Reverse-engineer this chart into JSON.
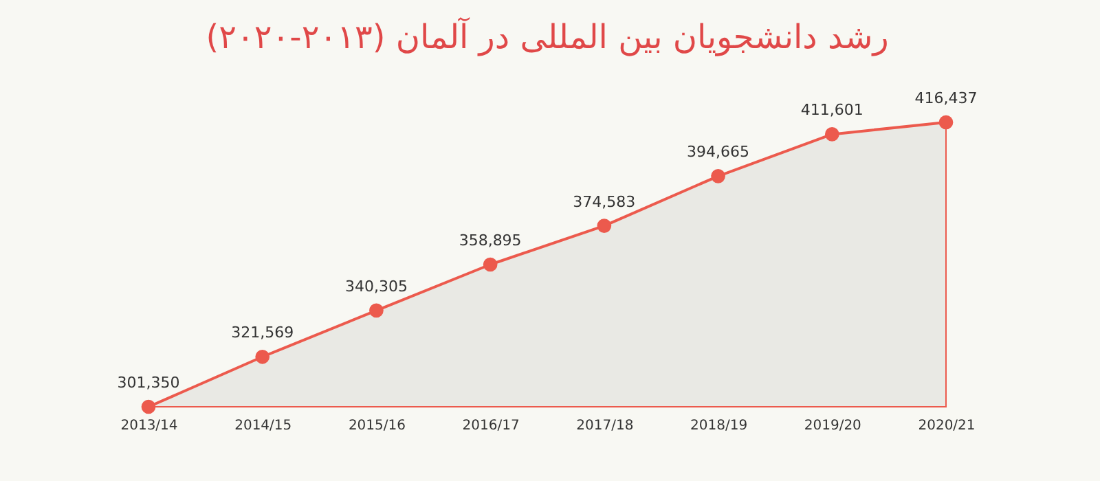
{
  "chart_data": {
    "type": "area",
    "title": "رشد دانشجویان بین المللی در آلمان (۲۰۱۳-۲۰۲۰)",
    "categories": [
      "2013/14",
      "2014/15",
      "2015/16",
      "2016/17",
      "2017/18",
      "2018/19",
      "2019/20",
      "2020/21"
    ],
    "series": [
      {
        "color": "#ec5a4d",
        "values": [
          301350,
          321569,
          340305,
          358895,
          374583,
          394665,
          411601,
          416437
        ],
        "value_labels": [
          "301,350",
          "321,569",
          "340,305",
          "358,895",
          "374,583",
          "394,665",
          "411,601",
          "416,437"
        ]
      }
    ],
    "tick_labels": "x",
    "marker": "circle"
  }
}
